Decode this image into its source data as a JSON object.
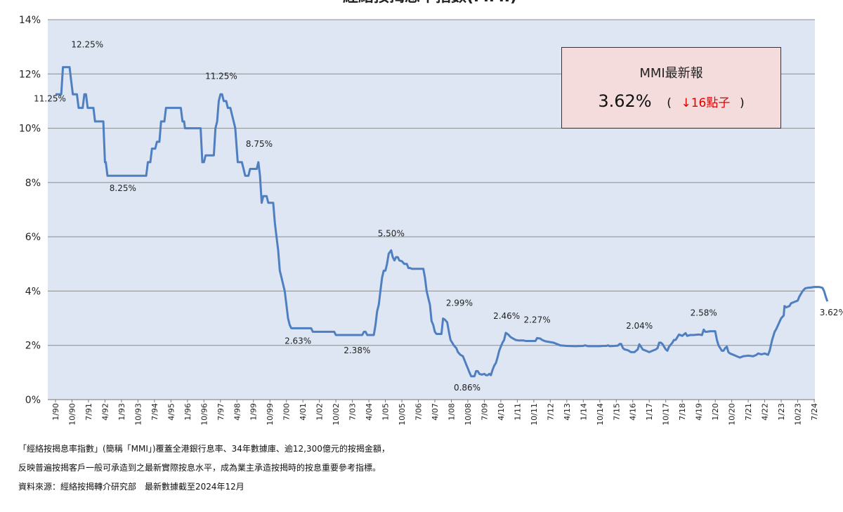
{
  "chart_data": {
    "type": "line",
    "title": "經絡按揭息率指數(MMI)",
    "ylim": [
      0,
      14
    ],
    "yticks": [
      "0%",
      "2%",
      "4%",
      "6%",
      "8%",
      "10%",
      "12%",
      "14%"
    ],
    "grid": true,
    "x_categories": [
      "1/90",
      "10/90",
      "7/91",
      "4/92",
      "1/93",
      "10/93",
      "7/94",
      "4/95",
      "1/96",
      "10/96",
      "7/97",
      "4/98",
      "1/99",
      "10/99",
      "7/00",
      "4/01",
      "1/02",
      "10/02",
      "7/03",
      "4/04",
      "1/05",
      "10/05",
      "7/06",
      "4/07",
      "1/08",
      "10/08",
      "7/09",
      "4/10",
      "1/11",
      "10/11",
      "7/12",
      "4/13",
      "1/14",
      "10/14",
      "7/15",
      "4/16",
      "1/17",
      "10/17",
      "7/18",
      "4/19",
      "1/20",
      "10/20",
      "7/21",
      "4/22",
      "1/23",
      "10/23",
      "7/24"
    ],
    "series": [
      {
        "color": "#4f7fc0",
        "points": [
          [
            0.0,
            11.25
          ],
          [
            0.35,
            11.25
          ],
          [
            0.45,
            12.25
          ],
          [
            0.85,
            12.25
          ],
          [
            0.95,
            11.75
          ],
          [
            1.05,
            11.25
          ],
          [
            1.3,
            11.25
          ],
          [
            1.4,
            10.75
          ],
          [
            1.65,
            10.75
          ],
          [
            1.75,
            11.25
          ],
          [
            1.85,
            11.25
          ],
          [
            1.95,
            10.75
          ],
          [
            2.3,
            10.75
          ],
          [
            2.4,
            10.25
          ],
          [
            2.9,
            10.25
          ],
          [
            3.0,
            8.75
          ],
          [
            3.05,
            8.75
          ],
          [
            3.15,
            8.25
          ],
          [
            5.5,
            8.25
          ],
          [
            5.6,
            8.75
          ],
          [
            5.75,
            8.75
          ],
          [
            5.85,
            9.25
          ],
          [
            6.05,
            9.25
          ],
          [
            6.15,
            9.5
          ],
          [
            6.3,
            9.5
          ],
          [
            6.4,
            10.25
          ],
          [
            6.6,
            10.25
          ],
          [
            6.7,
            10.75
          ],
          [
            7.6,
            10.75
          ],
          [
            7.7,
            10.25
          ],
          [
            7.8,
            10.25
          ],
          [
            7.85,
            10.0
          ],
          [
            8.8,
            10.0
          ],
          [
            8.9,
            8.75
          ],
          [
            9.0,
            8.75
          ],
          [
            9.1,
            9.0
          ],
          [
            9.6,
            9.0
          ],
          [
            9.7,
            10.0
          ],
          [
            9.8,
            10.25
          ],
          [
            9.9,
            11.0
          ],
          [
            10.0,
            11.25
          ],
          [
            10.1,
            11.25
          ],
          [
            10.2,
            11.0
          ],
          [
            10.35,
            11.0
          ],
          [
            10.45,
            10.75
          ],
          [
            10.6,
            10.75
          ],
          [
            10.7,
            10.5
          ],
          [
            10.8,
            10.25
          ],
          [
            10.9,
            10.0
          ],
          [
            11.05,
            8.75
          ],
          [
            11.3,
            8.75
          ],
          [
            11.4,
            8.5
          ],
          [
            11.5,
            8.25
          ],
          [
            11.7,
            8.25
          ],
          [
            11.8,
            8.5
          ],
          [
            12.2,
            8.5
          ],
          [
            12.3,
            8.75
          ],
          [
            12.4,
            8.25
          ],
          [
            12.5,
            7.25
          ],
          [
            12.6,
            7.5
          ],
          [
            12.8,
            7.5
          ],
          [
            12.9,
            7.25
          ],
          [
            13.2,
            7.25
          ],
          [
            13.3,
            6.5
          ],
          [
            13.4,
            6.0
          ],
          [
            13.5,
            5.5
          ],
          [
            13.6,
            4.75
          ],
          [
            13.7,
            4.5
          ],
          [
            13.8,
            4.25
          ],
          [
            13.9,
            4.0
          ],
          [
            14.0,
            3.5
          ],
          [
            14.1,
            3.0
          ],
          [
            14.2,
            2.75
          ],
          [
            14.3,
            2.63
          ],
          [
            15.5,
            2.63
          ],
          [
            15.6,
            2.5
          ],
          [
            16.9,
            2.5
          ],
          [
            17.0,
            2.38
          ],
          [
            18.6,
            2.38
          ],
          [
            18.7,
            2.5
          ],
          [
            18.8,
            2.5
          ],
          [
            18.9,
            2.38
          ],
          [
            19.3,
            2.38
          ],
          [
            19.4,
            2.75
          ],
          [
            19.5,
            3.25
          ],
          [
            19.6,
            3.5
          ],
          [
            19.7,
            4.0
          ],
          [
            19.8,
            4.5
          ],
          [
            19.9,
            4.75
          ],
          [
            20.0,
            4.75
          ],
          [
            20.1,
            5.0
          ],
          [
            20.2,
            5.38
          ],
          [
            20.35,
            5.5
          ],
          [
            20.45,
            5.25
          ],
          [
            20.55,
            5.13
          ],
          [
            20.65,
            5.25
          ],
          [
            20.75,
            5.25
          ],
          [
            20.85,
            5.13
          ],
          [
            21.0,
            5.1
          ],
          [
            21.15,
            5.0
          ],
          [
            21.3,
            5.0
          ],
          [
            21.4,
            4.85
          ],
          [
            21.5,
            4.85
          ],
          [
            21.6,
            4.82
          ],
          [
            22.3,
            4.82
          ],
          [
            22.4,
            4.5
          ],
          [
            22.5,
            4.0
          ],
          [
            22.6,
            3.75
          ],
          [
            22.7,
            3.5
          ],
          [
            22.8,
            2.9
          ],
          [
            22.9,
            2.75
          ],
          [
            23.0,
            2.5
          ],
          [
            23.1,
            2.42
          ],
          [
            23.4,
            2.42
          ],
          [
            23.5,
            2.99
          ],
          [
            23.6,
            2.95
          ],
          [
            23.75,
            2.85
          ],
          [
            23.85,
            2.5
          ],
          [
            23.95,
            2.2
          ],
          [
            24.05,
            2.1
          ],
          [
            24.15,
            2.0
          ],
          [
            24.3,
            1.9
          ],
          [
            24.4,
            1.75
          ],
          [
            24.55,
            1.65
          ],
          [
            24.7,
            1.6
          ],
          [
            24.8,
            1.45
          ],
          [
            24.9,
            1.3
          ],
          [
            25.0,
            1.15
          ],
          [
            25.1,
            1.0
          ],
          [
            25.2,
            0.86
          ],
          [
            25.4,
            0.86
          ],
          [
            25.5,
            1.05
          ],
          [
            25.6,
            1.05
          ],
          [
            25.7,
            0.95
          ],
          [
            25.85,
            0.92
          ],
          [
            26.0,
            0.95
          ],
          [
            26.1,
            0.9
          ],
          [
            26.2,
            0.9
          ],
          [
            26.3,
            0.95
          ],
          [
            26.4,
            0.9
          ],
          [
            26.5,
            1.1
          ],
          [
            26.6,
            1.25
          ],
          [
            26.7,
            1.35
          ],
          [
            26.8,
            1.55
          ],
          [
            26.9,
            1.8
          ],
          [
            27.0,
            1.95
          ],
          [
            27.1,
            2.1
          ],
          [
            27.2,
            2.2
          ],
          [
            27.3,
            2.46
          ],
          [
            27.45,
            2.4
          ],
          [
            27.6,
            2.3
          ],
          [
            27.75,
            2.25
          ],
          [
            27.9,
            2.2
          ],
          [
            28.1,
            2.18
          ],
          [
            28.4,
            2.18
          ],
          [
            28.5,
            2.16
          ],
          [
            29.1,
            2.16
          ],
          [
            29.2,
            2.27
          ],
          [
            29.4,
            2.25
          ],
          [
            29.5,
            2.2
          ],
          [
            29.7,
            2.15
          ],
          [
            30.0,
            2.12
          ],
          [
            30.2,
            2.1
          ],
          [
            30.4,
            2.05
          ],
          [
            30.6,
            2.0
          ],
          [
            31.0,
            1.98
          ],
          [
            31.5,
            1.97
          ],
          [
            32.0,
            1.98
          ],
          [
            32.1,
            2.0
          ],
          [
            32.3,
            1.97
          ],
          [
            32.8,
            1.97
          ],
          [
            33.0,
            1.97
          ],
          [
            33.2,
            1.98
          ],
          [
            33.4,
            1.98
          ],
          [
            33.5,
            2.0
          ],
          [
            33.6,
            1.97
          ],
          [
            33.9,
            1.98
          ],
          [
            34.1,
            1.99
          ],
          [
            34.2,
            2.05
          ],
          [
            34.3,
            2.05
          ],
          [
            34.4,
            1.9
          ],
          [
            34.5,
            1.85
          ],
          [
            34.7,
            1.82
          ],
          [
            34.9,
            1.75
          ],
          [
            35.1,
            1.75
          ],
          [
            35.3,
            1.85
          ],
          [
            35.4,
            2.04
          ],
          [
            35.5,
            1.95
          ],
          [
            35.6,
            1.85
          ],
          [
            35.8,
            1.8
          ],
          [
            36.0,
            1.75
          ],
          [
            36.2,
            1.8
          ],
          [
            36.4,
            1.85
          ],
          [
            36.5,
            1.9
          ],
          [
            36.6,
            2.1
          ],
          [
            36.7,
            2.1
          ],
          [
            36.8,
            2.05
          ],
          [
            36.9,
            1.95
          ],
          [
            37.0,
            1.85
          ],
          [
            37.1,
            1.8
          ],
          [
            37.2,
            1.95
          ],
          [
            37.4,
            2.1
          ],
          [
            37.5,
            2.2
          ],
          [
            37.6,
            2.2
          ],
          [
            37.8,
            2.4
          ],
          [
            38.0,
            2.35
          ],
          [
            38.2,
            2.45
          ],
          [
            38.3,
            2.35
          ],
          [
            38.5,
            2.38
          ],
          [
            38.7,
            2.38
          ],
          [
            39.0,
            2.4
          ],
          [
            39.2,
            2.38
          ],
          [
            39.3,
            2.58
          ],
          [
            39.4,
            2.5
          ],
          [
            39.5,
            2.5
          ],
          [
            39.7,
            2.52
          ],
          [
            40.0,
            2.52
          ],
          [
            40.1,
            2.2
          ],
          [
            40.2,
            2.0
          ],
          [
            40.3,
            1.9
          ],
          [
            40.4,
            1.8
          ],
          [
            40.5,
            1.8
          ],
          [
            40.6,
            1.9
          ],
          [
            40.7,
            1.95
          ],
          [
            40.8,
            1.75
          ],
          [
            40.9,
            1.7
          ],
          [
            41.1,
            1.65
          ],
          [
            41.3,
            1.6
          ],
          [
            41.5,
            1.55
          ],
          [
            41.7,
            1.6
          ],
          [
            42.0,
            1.62
          ],
          [
            42.3,
            1.6
          ],
          [
            42.5,
            1.65
          ],
          [
            42.6,
            1.7
          ],
          [
            42.8,
            1.67
          ],
          [
            43.0,
            1.7
          ],
          [
            43.2,
            1.65
          ],
          [
            43.3,
            1.8
          ],
          [
            43.45,
            2.2
          ],
          [
            43.6,
            2.5
          ],
          [
            43.7,
            2.6
          ],
          [
            43.85,
            2.8
          ],
          [
            44.0,
            3.0
          ],
          [
            44.15,
            3.1
          ],
          [
            44.2,
            3.45
          ],
          [
            44.3,
            3.4
          ],
          [
            44.5,
            3.45
          ],
          [
            44.6,
            3.55
          ],
          [
            44.8,
            3.6
          ],
          [
            45.0,
            3.65
          ],
          [
            45.1,
            3.8
          ],
          [
            45.3,
            4.0
          ],
          [
            45.45,
            4.1
          ],
          [
            45.6,
            4.12
          ],
          [
            45.8,
            4.13
          ],
          [
            46.0,
            4.15
          ],
          [
            46.3,
            4.15
          ],
          [
            46.5,
            4.12
          ],
          [
            46.6,
            4.0
          ],
          [
            46.7,
            3.8
          ],
          [
            46.8,
            3.62
          ]
        ]
      }
    ],
    "annotations": [
      {
        "text": "12.25%",
        "x": 0.65,
        "y": 12.25
      },
      {
        "text": "11.25%",
        "x": 0.0,
        "y": 11.25
      },
      {
        "text": "8.25%",
        "x": 3.4,
        "y": 8.25
      },
      {
        "text": "11.25%",
        "x": 10.05,
        "y": 11.25
      },
      {
        "text": "8.75%",
        "x": 12.35,
        "y": 8.75
      },
      {
        "text": "2.63%",
        "x": 14.7,
        "y": 2.63
      },
      {
        "text": "2.38%",
        "x": 18.2,
        "y": 2.38
      },
      {
        "text": "5.50%",
        "x": 20.35,
        "y": 5.5
      },
      {
        "text": "2.99%",
        "x": 23.55,
        "y": 2.99
      },
      {
        "text": "0.86%",
        "x": 25.3,
        "y": 0.86
      },
      {
        "text": "2.46%",
        "x": 27.35,
        "y": 2.46
      },
      {
        "text": "2.27%",
        "x": 29.2,
        "y": 2.27
      },
      {
        "text": "2.04%",
        "x": 35.4,
        "y": 2.04
      },
      {
        "text": "2.58%",
        "x": 39.3,
        "y": 2.58
      },
      {
        "text": "3.62%",
        "x": 46.8,
        "y": 3.62
      }
    ]
  },
  "latest_box": {
    "title": "MMI最新報",
    "value": "3.62%",
    "open_paren": "(",
    "change": "↓16點子",
    "close_paren": ")"
  },
  "footer": {
    "line1": "「經絡按揭息率指數」(簡稱「MMI」)覆蓋全港銀行息率、34年數據庫、逾12,300億元的按揭金額，",
    "line2": "反映普遍按揭客戶一般可承造到之最新實際按息水平，成為業主承造按揭時的按息重要參考指標。",
    "line3": "資料來源：經絡按揭轉介研究部　最新數據截至2024年12月"
  }
}
